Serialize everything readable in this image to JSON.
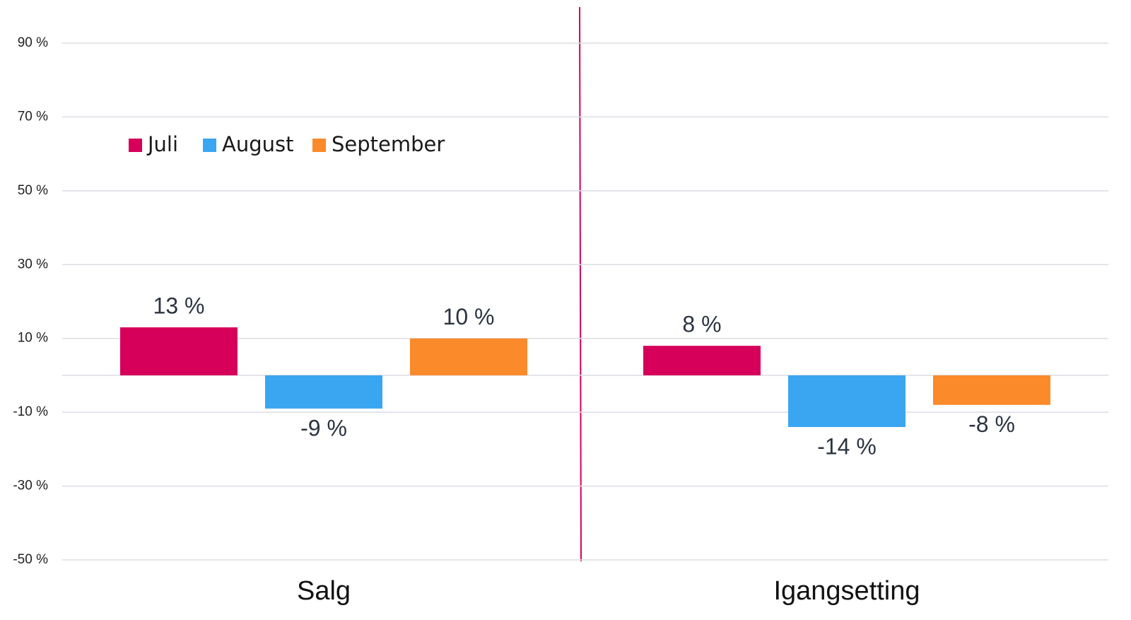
{
  "chart_data": {
    "type": "bar",
    "categories": [
      "Salg",
      "Igangsetting"
    ],
    "series": [
      {
        "name": "Juli",
        "color": "#d6005a",
        "values": [
          13,
          8
        ],
        "value_labels": [
          "13 %",
          "8 %"
        ]
      },
      {
        "name": "August",
        "color": "#3aa6f2",
        "values": [
          -9,
          -14
        ],
        "value_labels": [
          "-9 %",
          "-14 %"
        ]
      },
      {
        "name": "September",
        "color": "#fa8a2a",
        "values": [
          10,
          -8
        ],
        "value_labels": [
          "10 %",
          "-8 %"
        ]
      }
    ],
    "ylim": [
      -50,
      90
    ],
    "yticks": [
      {
        "value": 90,
        "label": "90 %"
      },
      {
        "value": 70,
        "label": "70 %"
      },
      {
        "value": 50,
        "label": "50 %"
      },
      {
        "value": 30,
        "label": "30 %"
      },
      {
        "value": 10,
        "label": "10 %"
      },
      {
        "value": -10,
        "label": "-10 %"
      },
      {
        "value": -30,
        "label": "-30 %"
      },
      {
        "value": -50,
        "label": "-50 %"
      }
    ],
    "grid": true,
    "legend": "top-left"
  }
}
